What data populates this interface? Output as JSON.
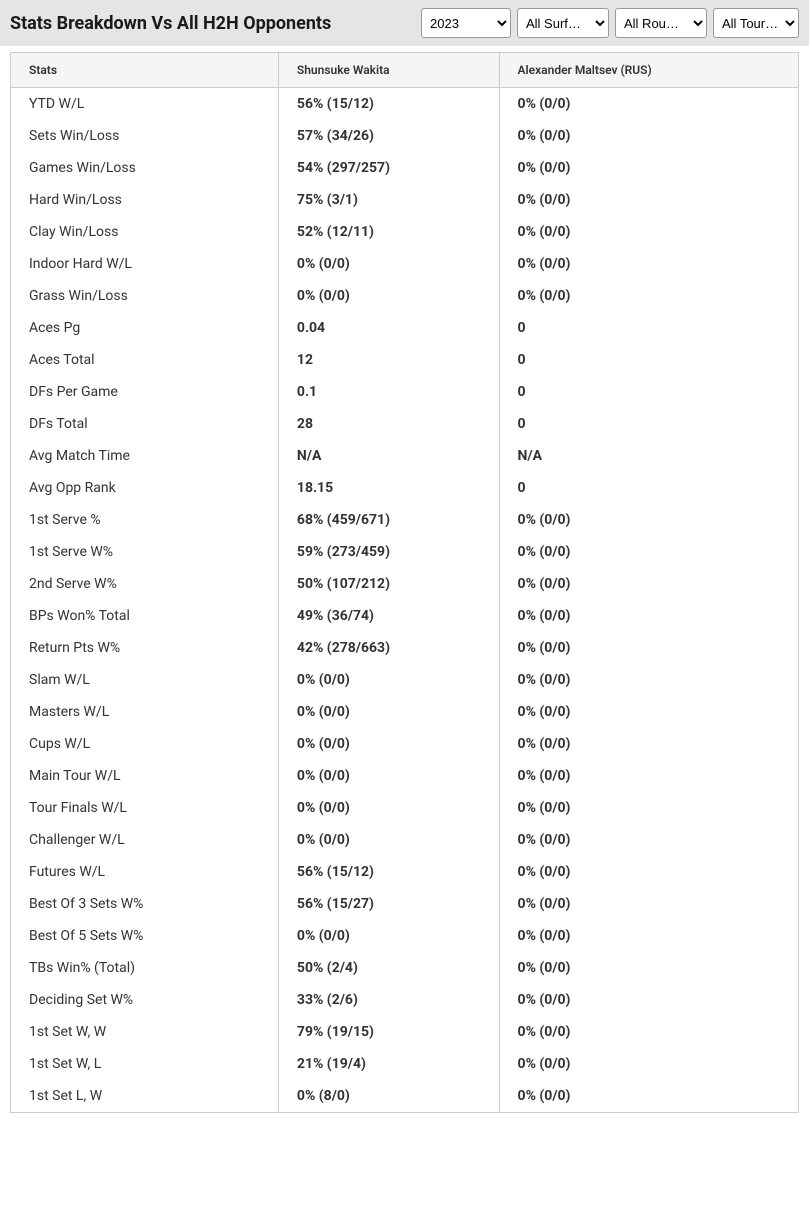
{
  "header": {
    "title": "Stats Breakdown Vs All H2H Opponents",
    "filters": {
      "year": "2023",
      "surface": "All Surf…",
      "round": "All Rou…",
      "tour": "All Tour…"
    }
  },
  "table": {
    "columns": {
      "stats": "Stats",
      "player1": "Shunsuke Wakita",
      "player2": "Alexander Maltsev (RUS)"
    },
    "rows": [
      {
        "stat": "YTD W/L",
        "p1": "56% (15/12)",
        "p2": "0% (0/0)"
      },
      {
        "stat": "Sets Win/Loss",
        "p1": "57% (34/26)",
        "p2": "0% (0/0)"
      },
      {
        "stat": "Games Win/Loss",
        "p1": "54% (297/257)",
        "p2": "0% (0/0)"
      },
      {
        "stat": "Hard Win/Loss",
        "p1": "75% (3/1)",
        "p2": "0% (0/0)"
      },
      {
        "stat": "Clay Win/Loss",
        "p1": "52% (12/11)",
        "p2": "0% (0/0)"
      },
      {
        "stat": "Indoor Hard W/L",
        "p1": "0% (0/0)",
        "p2": "0% (0/0)"
      },
      {
        "stat": "Grass Win/Loss",
        "p1": "0% (0/0)",
        "p2": "0% (0/0)"
      },
      {
        "stat": "Aces Pg",
        "p1": "0.04",
        "p2": "0"
      },
      {
        "stat": "Aces Total",
        "p1": "12",
        "p2": "0"
      },
      {
        "stat": "DFs Per Game",
        "p1": "0.1",
        "p2": "0"
      },
      {
        "stat": "DFs Total",
        "p1": "28",
        "p2": "0"
      },
      {
        "stat": "Avg Match Time",
        "p1": "N/A",
        "p2": "N/A"
      },
      {
        "stat": "Avg Opp Rank",
        "p1": "18.15",
        "p2": "0"
      },
      {
        "stat": "1st Serve %",
        "p1": "68% (459/671)",
        "p2": "0% (0/0)"
      },
      {
        "stat": "1st Serve W%",
        "p1": "59% (273/459)",
        "p2": "0% (0/0)"
      },
      {
        "stat": "2nd Serve W%",
        "p1": "50% (107/212)",
        "p2": "0% (0/0)"
      },
      {
        "stat": "BPs Won% Total",
        "p1": "49% (36/74)",
        "p2": "0% (0/0)"
      },
      {
        "stat": "Return Pts W%",
        "p1": "42% (278/663)",
        "p2": "0% (0/0)"
      },
      {
        "stat": "Slam W/L",
        "p1": "0% (0/0)",
        "p2": "0% (0/0)"
      },
      {
        "stat": "Masters W/L",
        "p1": "0% (0/0)",
        "p2": "0% (0/0)"
      },
      {
        "stat": "Cups W/L",
        "p1": "0% (0/0)",
        "p2": "0% (0/0)"
      },
      {
        "stat": "Main Tour W/L",
        "p1": "0% (0/0)",
        "p2": "0% (0/0)"
      },
      {
        "stat": "Tour Finals W/L",
        "p1": "0% (0/0)",
        "p2": "0% (0/0)"
      },
      {
        "stat": "Challenger W/L",
        "p1": "0% (0/0)",
        "p2": "0% (0/0)"
      },
      {
        "stat": "Futures W/L",
        "p1": "56% (15/12)",
        "p2": "0% (0/0)"
      },
      {
        "stat": "Best Of 3 Sets W%",
        "p1": "56% (15/27)",
        "p2": "0% (0/0)"
      },
      {
        "stat": "Best Of 5 Sets W%",
        "p1": "0% (0/0)",
        "p2": "0% (0/0)"
      },
      {
        "stat": "TBs Win% (Total)",
        "p1": "50% (2/4)",
        "p2": "0% (0/0)"
      },
      {
        "stat": "Deciding Set W%",
        "p1": "33% (2/6)",
        "p2": "0% (0/0)"
      },
      {
        "stat": "1st Set W, W",
        "p1": "79% (19/15)",
        "p2": "0% (0/0)"
      },
      {
        "stat": "1st Set W, L",
        "p1": "21% (19/4)",
        "p2": "0% (0/0)"
      },
      {
        "stat": "1st Set L, W",
        "p1": "0% (8/0)",
        "p2": "0% (0/0)"
      }
    ]
  },
  "style": {
    "header_bg": "#e5e5e5",
    "table_border": "#cccccc",
    "thead_bg": "#f5f5f5",
    "text_color": "#333333",
    "title_color": "#1a1a1a"
  }
}
